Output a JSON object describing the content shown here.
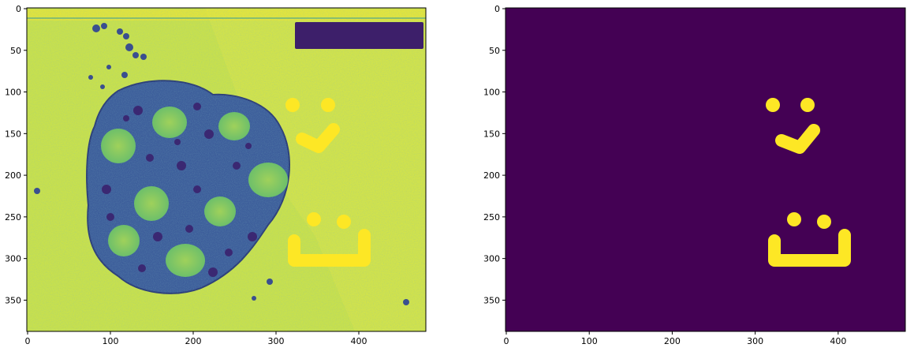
{
  "figure": {
    "panels": [
      {
        "id": "left",
        "content": "EM micrograph of a cell with smiley-face annotations drawn in yellow",
        "x_ticks": [
          "0",
          "100",
          "200",
          "300",
          "400"
        ],
        "y_ticks": [
          "0",
          "50",
          "100",
          "150",
          "200",
          "250",
          "300",
          "350"
        ],
        "x_range": [
          0,
          480
        ],
        "y_range": [
          0,
          398
        ]
      },
      {
        "id": "right",
        "content": "binary mask of the smiley-face annotations",
        "x_ticks": [
          "0",
          "100",
          "200",
          "300",
          "400"
        ],
        "y_ticks": [
          "0",
          "50",
          "100",
          "150",
          "200",
          "250",
          "300",
          "350"
        ],
        "x_range": [
          0,
          480
        ],
        "y_range": [
          0,
          398
        ]
      }
    ],
    "colors": {
      "mask_background": "#440154",
      "mask_foreground": "#fde725",
      "image_background": "#c9e24a",
      "cell_dark": "#3b5a9a"
    }
  }
}
